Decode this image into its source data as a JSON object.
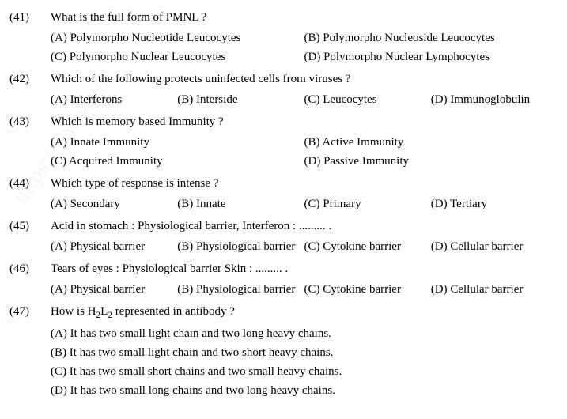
{
  "watermark_text": "https://www.stu",
  "watermark_color": "#cccccc",
  "watermark_fontsize": 30,
  "questions": [
    {
      "num": "(41)",
      "stem": "What is the full form of PMNL ?",
      "layout": "w50",
      "options": [
        {
          "label": "(A) Polymorpho Nucleotide Leucocytes"
        },
        {
          "label": "(B) Polymorpho Nucleoside Leucocytes"
        },
        {
          "label": "(C) Polymorpho Nuclear Leucocytes"
        },
        {
          "label": "(D) Polymorpho Nuclear Lymphocytes"
        }
      ]
    },
    {
      "num": "(42)",
      "stem": "Which of the following protects uninfected cells from viruses ?",
      "layout": "w25",
      "options": [
        {
          "label": "(A) Interferons"
        },
        {
          "label": "(B) Interside"
        },
        {
          "label": "(C) Leucocytes"
        },
        {
          "label": "(D) Immunoglobulin"
        }
      ]
    },
    {
      "num": "(43)",
      "stem": "Which is memory based Immunity ?",
      "layout": "w50",
      "options": [
        {
          "label": "(A) Innate Immunity"
        },
        {
          "label": "(B) Active Immunity"
        },
        {
          "label": "(C) Acquired Immunity"
        },
        {
          "label": "(D) Passive Immunity"
        }
      ]
    },
    {
      "num": "(44)",
      "stem": "Which type of response is intense ?",
      "layout": "w25",
      "options": [
        {
          "label": "(A) Secondary"
        },
        {
          "label": "(B) Innate"
        },
        {
          "label": "(C) Primary"
        },
        {
          "label": "(D) Tertiary"
        }
      ]
    },
    {
      "num": "(45)",
      "stem": "Acid in stomach : Physiological barrier, Interferon : ......... .",
      "layout": "w25",
      "options": [
        {
          "label": "(A) Physical barrier"
        },
        {
          "label": "(B) Physiological barrier"
        },
        {
          "label": "(C) Cytokine barrier"
        },
        {
          "label": "(D) Cellular barrier"
        }
      ]
    },
    {
      "num": "(46)",
      "stem": "Tears of eyes : Physiological barrier Skin : ......... .",
      "layout": "w25",
      "options": [
        {
          "label": "(A) Physical barrier"
        },
        {
          "label": "(B) Physiological barrier"
        },
        {
          "label": "(C) Cytokine barrier"
        },
        {
          "label": "(D) Cellular barrier"
        }
      ]
    },
    {
      "num": "(47)",
      "stem_html": "How is H<span class=\"sub\">2</span>L<span class=\"sub\">2</span> represented in antibody ?",
      "layout": "w100",
      "options": [
        {
          "label": "(A) It has two small light chain and two long heavy chains."
        },
        {
          "label": "(B) It has two small light chain and two short heavy chains."
        },
        {
          "label": "(C) It has two small short chains and two small heavy chains."
        },
        {
          "label": "(D) It has two small long chains and two long heavy chains."
        }
      ]
    }
  ]
}
